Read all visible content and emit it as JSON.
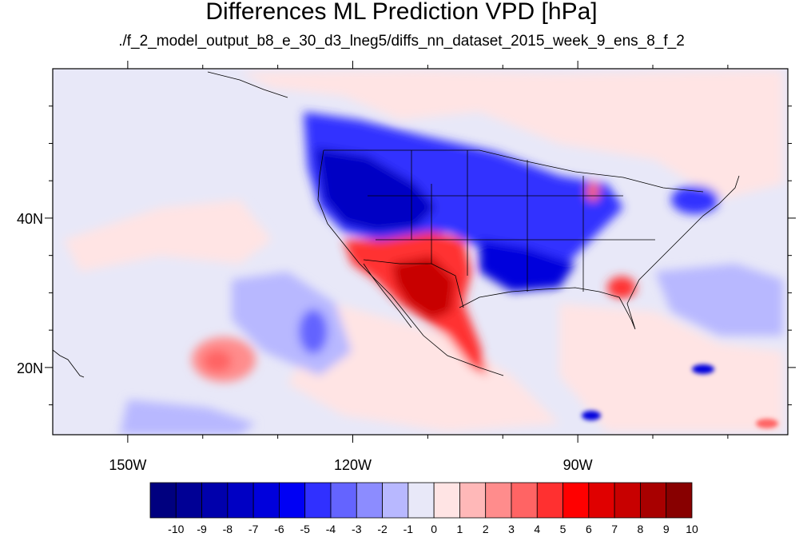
{
  "title": "Differences ML Prediction VPD [hPa]",
  "subtitle": "./f_2_model_output_b8_e_30_d3_lneg5/diffs_nn_dataset_2015_week_9_ens_8_f_2",
  "map": {
    "lon_range": [
      -160,
      -62
    ],
    "lat_range": [
      11,
      60
    ],
    "lon_ticks": [
      {
        "value": -150,
        "label": "150W"
      },
      {
        "value": -120,
        "label": "120W"
      },
      {
        "value": -90,
        "label": "90W"
      }
    ],
    "lat_ticks": [
      {
        "value": 40,
        "label": "40N"
      },
      {
        "value": 20,
        "label": "20N"
      }
    ],
    "background_color": "#e8e8f8"
  },
  "colorbar": {
    "labels": [
      "-10",
      "-9",
      "-8",
      "-7",
      "-6",
      "-5",
      "-4",
      "-3",
      "-2",
      "-1",
      "0",
      "1",
      "2",
      "3",
      "4",
      "5",
      "6",
      "7",
      "8",
      "9",
      "10"
    ],
    "colors": [
      "#00007f",
      "#000095",
      "#0000ac",
      "#0000c4",
      "#0000dc",
      "#0000f4",
      "#3030ff",
      "#6464ff",
      "#8c8cff",
      "#b8b8ff",
      "#e8e8f8",
      "#ffe4e4",
      "#ffb8b8",
      "#ff8c8c",
      "#ff6464",
      "#ff3030",
      "#ff0000",
      "#e00000",
      "#c80000",
      "#a80000",
      "#880000"
    ]
  }
}
